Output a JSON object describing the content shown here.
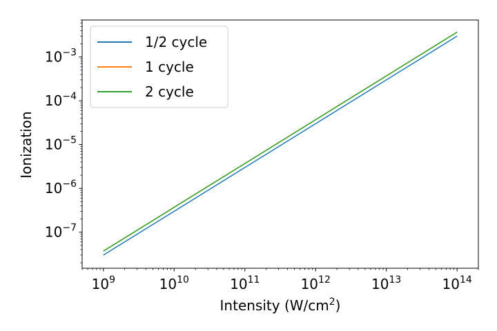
{
  "chart_data": {
    "type": "line",
    "xlabel": "Intensity (W/cm²)",
    "xlabel_main": "Intensity (W/cm",
    "xlabel_sup": "2",
    "xlabel_end": ")",
    "ylabel": "Ionization",
    "xscale": "log",
    "yscale": "log",
    "xlim": [
      500000000.0,
      200000000000000.0
    ],
    "ylim": [
      1.5e-08,
      0.007
    ],
    "grid": false,
    "legend_position": "top-left",
    "x_ticks": [
      {
        "base": "10",
        "exp": "9",
        "value": 1000000000.0
      },
      {
        "base": "10",
        "exp": "10",
        "value": 10000000000.0
      },
      {
        "base": "10",
        "exp": "11",
        "value": 100000000000.0
      },
      {
        "base": "10",
        "exp": "12",
        "value": 1000000000000.0
      },
      {
        "base": "10",
        "exp": "13",
        "value": 10000000000000.0
      },
      {
        "base": "10",
        "exp": "14",
        "value": 100000000000000.0
      }
    ],
    "y_ticks": [
      {
        "base": "10",
        "exp": "−7",
        "value": 1e-07
      },
      {
        "base": "10",
        "exp": "−6",
        "value": 1e-06
      },
      {
        "base": "10",
        "exp": "−5",
        "value": 1e-05
      },
      {
        "base": "10",
        "exp": "−4",
        "value": 0.0001
      },
      {
        "base": "10",
        "exp": "−3",
        "value": 0.001
      }
    ],
    "series": [
      {
        "name": "1/2 cycle",
        "color": "#1f77b4",
        "x": [
          1000000000.0,
          10000000000.0,
          100000000000.0,
          1000000000000.0,
          10000000000000.0,
          100000000000000.0
        ],
        "y": [
          3e-08,
          3e-07,
          3e-06,
          3e-05,
          0.0003,
          0.003
        ]
      },
      {
        "name": "1 cycle",
        "color": "#ff7f0e",
        "x": [
          1000000000.0,
          10000000000.0,
          100000000000.0,
          1000000000000.0,
          10000000000000.0,
          100000000000000.0
        ],
        "y": [
          3.7e-08,
          3.7e-07,
          3.7e-06,
          3.7e-05,
          0.00037,
          0.0037
        ]
      },
      {
        "name": "2 cycle",
        "color": "#2ca02c",
        "x": [
          1000000000.0,
          10000000000.0,
          100000000000.0,
          1000000000000.0,
          10000000000000.0,
          100000000000000.0
        ],
        "y": [
          3.7e-08,
          3.7e-07,
          3.7e-06,
          3.7e-05,
          0.00037,
          0.0037
        ]
      }
    ]
  }
}
